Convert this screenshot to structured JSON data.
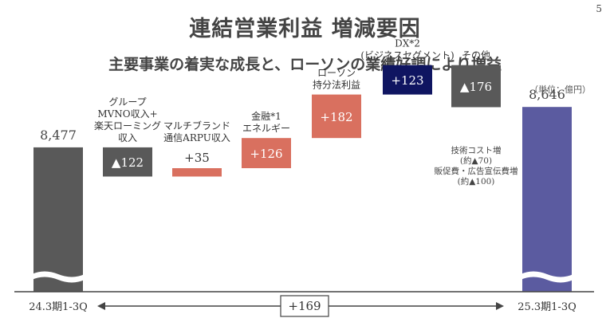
{
  "page": {
    "number": "5",
    "title": "連結営業利益 増減要因",
    "subtitle": "主要事業の着実な成長と、ローソンの業績好調により増益",
    "unit": "（単位：億円）"
  },
  "colors": {
    "gray": "#595959",
    "red": "#d9705f",
    "navy": "#0f1561",
    "purple": "#5b5ba0",
    "line": "#444444"
  },
  "chart_data": {
    "type": "bar",
    "categories": [
      "24.3期1-3Q",
      "グループ MVNO収入+ 楽天ローミング 収入",
      "マルチブランド 通信ARPU収入",
      "金融*1 エネルギー",
      "ローソン 持分法利益",
      "DX*2 (ビジネスセグメント)",
      "その他",
      "25.3期1-3Q"
    ],
    "start": 8477,
    "end": 8646,
    "steps": [
      {
        "label_lines": [
          "グループ",
          "MVNO収入+",
          "楽天ローミング",
          "収入"
        ],
        "value": -122,
        "value_text": "▲122",
        "color": "gray"
      },
      {
        "label_lines": [
          "マルチブランド",
          "通信ARPU収入"
        ],
        "value": 35,
        "value_text": "+35",
        "color": "red"
      },
      {
        "label_lines": [
          "金融*1",
          "エネルギー"
        ],
        "value": 126,
        "value_text": "+126",
        "color": "red"
      },
      {
        "label_lines": [
          "ローソン",
          "持分法利益"
        ],
        "value": 182,
        "value_text": "+182",
        "color": "red"
      },
      {
        "label_lines": [
          "DX*2",
          "(ビジネスセグメント)"
        ],
        "value": 123,
        "value_text": "+123",
        "color": "navy"
      },
      {
        "label_lines": [
          "その他"
        ],
        "value": -176,
        "value_text": "▲176",
        "color": "gray"
      }
    ],
    "start_label": "8,477",
    "end_label": "8,646",
    "x_start_label": "24.3期1-3Q",
    "x_end_label": "25.3期1-3Q",
    "diff_label": "+169",
    "other_notes": [
      "技術コスト増",
      "(約▲70)",
      "販促費・広告宣伝費増",
      "(約▲100)"
    ]
  }
}
